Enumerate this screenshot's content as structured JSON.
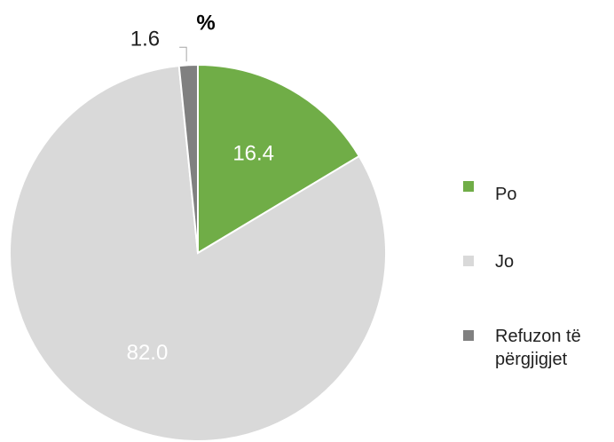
{
  "chart_data": {
    "type": "pie",
    "title": "%",
    "categories": [
      "Po",
      "Jo",
      "Refuzon të përgjigjet"
    ],
    "values": [
      16.4,
      82.0,
      1.6
    ],
    "value_labels": [
      "16.4",
      "82.0",
      "1.6"
    ],
    "colors": [
      "#70ad47",
      "#d9d9d9",
      "#808080"
    ]
  }
}
